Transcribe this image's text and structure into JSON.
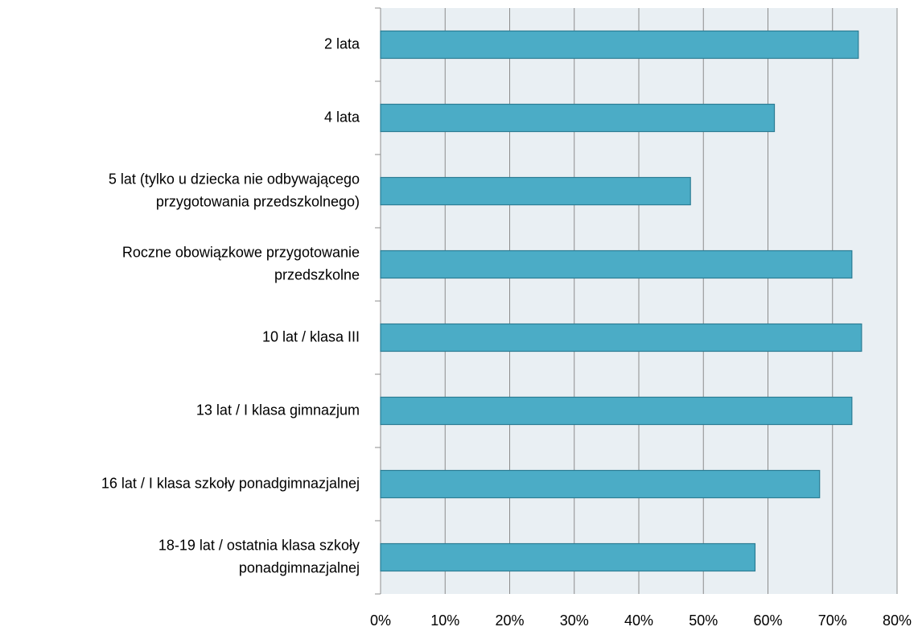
{
  "chart_data": {
    "type": "bar",
    "orientation": "horizontal",
    "categories": [
      [
        "2 lata"
      ],
      [
        "4 lata"
      ],
      [
        "5 lat (tylko u dziecka nie odbywającego",
        "przygotowania przedszkolnego)"
      ],
      [
        "Roczne obowiązkowe przygotowanie",
        "przedszkolne"
      ],
      [
        "10 lat / klasa III"
      ],
      [
        "13 lat / I klasa gimnazjum"
      ],
      [
        "16 lat / I klasa szkoły  ponadgimnazjalnej"
      ],
      [
        "18-19 lat / ostatnia klasa szkoły",
        "ponadgimnazjalnej"
      ]
    ],
    "values": [
      74,
      61,
      48,
      73,
      74.5,
      73,
      68,
      58
    ],
    "color": "#4bacc6",
    "xlim": [
      0,
      80
    ],
    "xticks": [
      {
        "value": 0,
        "label": "0%"
      },
      {
        "value": 10,
        "label": "10%"
      },
      {
        "value": 20,
        "label": "20%"
      },
      {
        "value": 30,
        "label": "30%"
      },
      {
        "value": 40,
        "label": "40%"
      },
      {
        "value": 50,
        "label": "50%"
      },
      {
        "value": 60,
        "label": "60%"
      },
      {
        "value": 70,
        "label": "70%"
      },
      {
        "value": 80,
        "label": "80%"
      }
    ],
    "grid": true
  }
}
